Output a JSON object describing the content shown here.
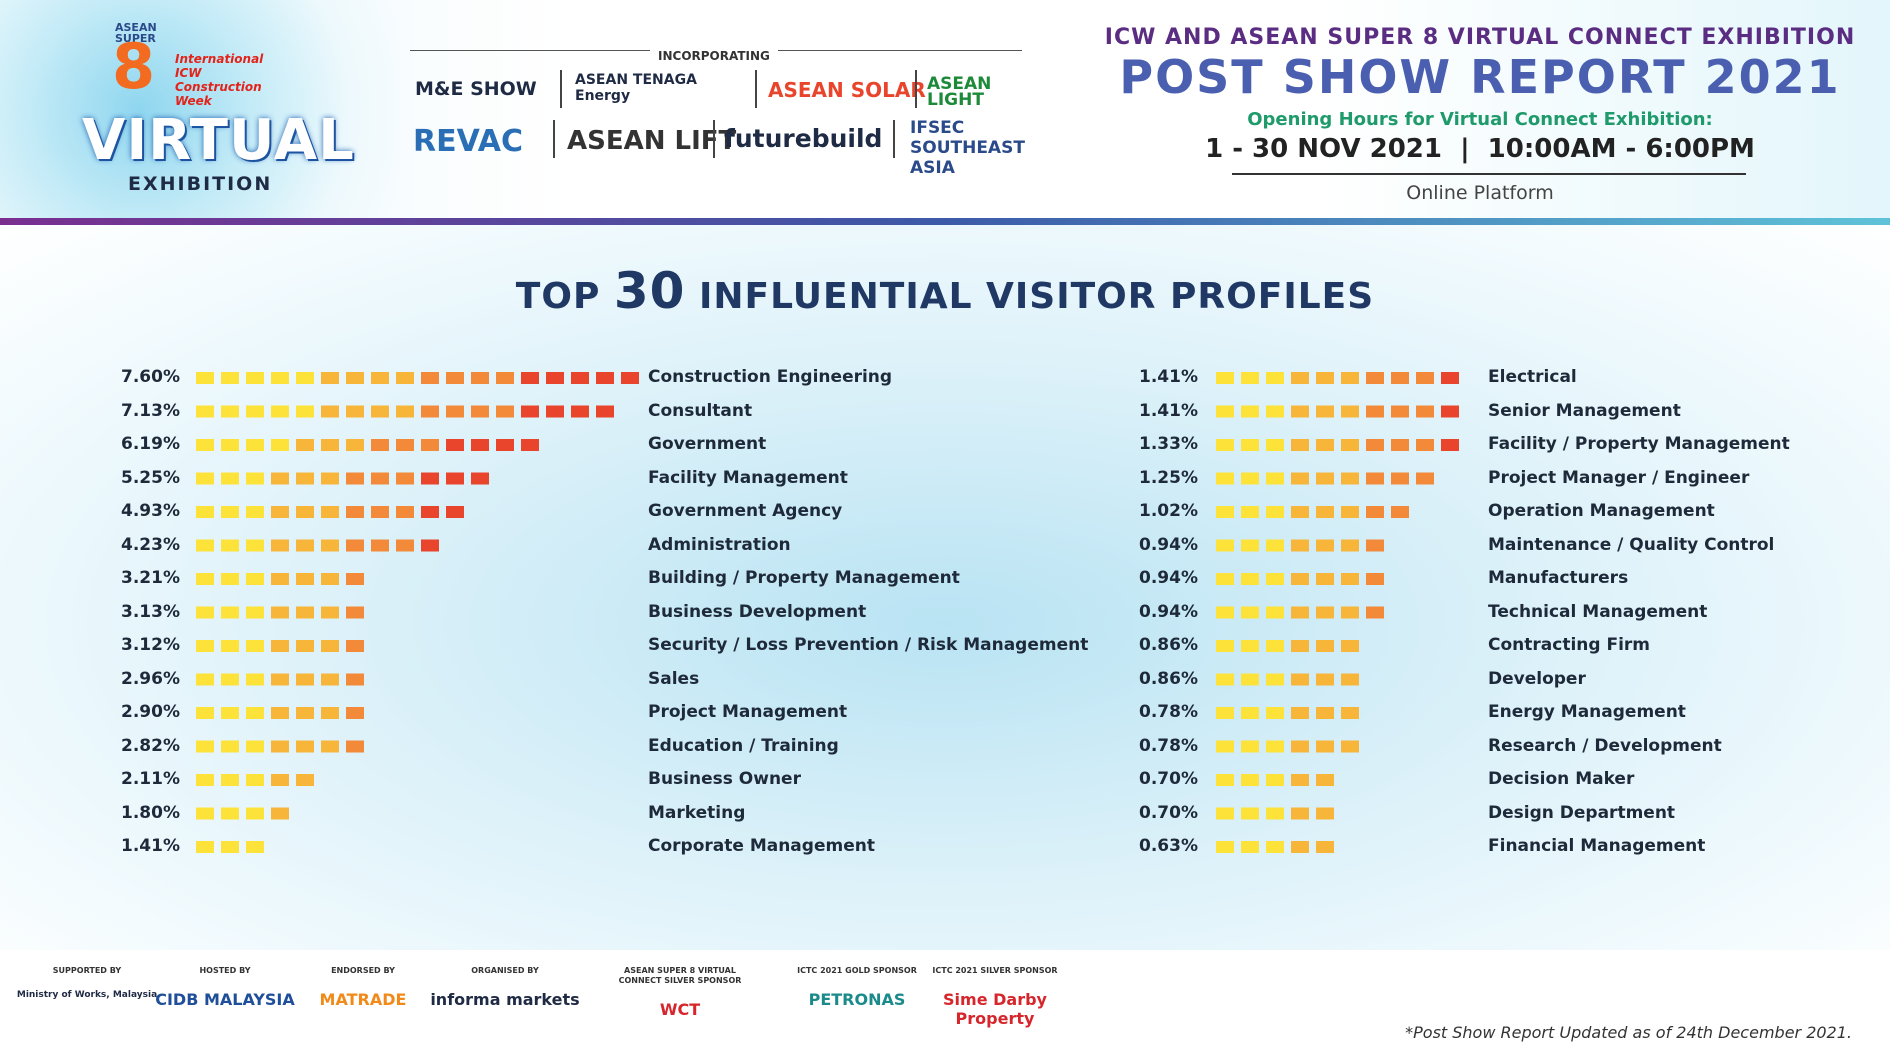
{
  "logo": {
    "asean": "ASEAN",
    "super": "SUPER",
    "eight": "8",
    "icw": "International ICW Construction Week",
    "virtual": "VIRTUAL",
    "exhibition": "EXHIBITION"
  },
  "incorporating": {
    "label": "INCORPORATING",
    "brands": [
      "M&E SHOW",
      "ASEAN TENAGA Energy",
      "ASEAN SOLAR",
      "ASEAN LIGHT",
      "REVAC",
      "ASEAN LIFT",
      "futurebuild",
      "IFSEC SOUTHEAST ASIA"
    ]
  },
  "header": {
    "top_line": "ICW AND ASEAN SUPER 8 VIRTUAL CONNECT EXHIBITION",
    "title": "POST SHOW REPORT 2021",
    "hours_label": "Opening Hours for Virtual Connect Exhibition:",
    "dates": "1 - 30 NOV 2021  |  10:00AM - 6:00PM",
    "platform": "Online Platform"
  },
  "section": {
    "title_pre": "TOP",
    "title_num": "30",
    "title_post": "INFLUENTIAL VISITOR PROFILES"
  },
  "chart_data": {
    "type": "bar",
    "title": "TOP 30 INFLUENTIAL VISITOR PROFILES",
    "orientation": "horizontal",
    "colors": [
      "#fde23a",
      "#f7b63a",
      "#f28a3a",
      "#e8452c"
    ],
    "left": [
      {
        "label": "Construction Engineering",
        "value": 7.6,
        "text": "7.60%"
      },
      {
        "label": "Consultant",
        "value": 7.13,
        "text": "7.13%"
      },
      {
        "label": "Government",
        "value": 6.19,
        "text": "6.19%"
      },
      {
        "label": "Facility Management",
        "value": 5.25,
        "text": "5.25%"
      },
      {
        "label": "Government Agency",
        "value": 4.93,
        "text": "4.93%"
      },
      {
        "label": "Administration",
        "value": 4.23,
        "text": "4.23%"
      },
      {
        "label": "Building / Property Management",
        "value": 3.21,
        "text": "3.21%"
      },
      {
        "label": "Business Development",
        "value": 3.13,
        "text": "3.13%"
      },
      {
        "label": "Security / Loss Prevention / Risk Management",
        "value": 3.12,
        "text": "3.12%"
      },
      {
        "label": "Sales",
        "value": 2.96,
        "text": "2.96%"
      },
      {
        "label": "Project Management",
        "value": 2.9,
        "text": "2.90%"
      },
      {
        "label": "Education / Training",
        "value": 2.82,
        "text": "2.82%"
      },
      {
        "label": "Business Owner",
        "value": 2.11,
        "text": "2.11%"
      },
      {
        "label": "Marketing",
        "value": 1.8,
        "text": "1.80%"
      },
      {
        "label": "Corporate Management",
        "value": 1.41,
        "text": "1.41%"
      }
    ],
    "right": [
      {
        "label": "Electrical",
        "value": 1.41,
        "text": "1.41%"
      },
      {
        "label": "Senior Management",
        "value": 1.41,
        "text": "1.41%"
      },
      {
        "label": "Facility / Property Management",
        "value": 1.33,
        "text": "1.33%"
      },
      {
        "label": "Project Manager / Engineer",
        "value": 1.25,
        "text": "1.25%"
      },
      {
        "label": "Operation Management",
        "value": 1.02,
        "text": "1.02%"
      },
      {
        "label": "Maintenance / Quality Control",
        "value": 0.94,
        "text": "0.94%"
      },
      {
        "label": "Manufacturers",
        "value": 0.94,
        "text": "0.94%"
      },
      {
        "label": "Technical Management",
        "value": 0.94,
        "text": "0.94%"
      },
      {
        "label": "Contracting Firm",
        "value": 0.86,
        "text": "0.86%"
      },
      {
        "label": "Developer",
        "value": 0.86,
        "text": "0.86%"
      },
      {
        "label": "Energy Management",
        "value": 0.78,
        "text": "0.78%"
      },
      {
        "label": "Research / Development",
        "value": 0.78,
        "text": "0.78%"
      },
      {
        "label": "Decision Maker",
        "value": 0.7,
        "text": "0.70%"
      },
      {
        "label": "Design Department",
        "value": 0.7,
        "text": "0.70%"
      },
      {
        "label": "Financial Management",
        "value": 0.63,
        "text": "0.63%"
      }
    ]
  },
  "footer": {
    "sponsors": [
      {
        "caption": "SUPPORTED BY",
        "name": "Ministry of Works, Malaysia"
      },
      {
        "caption": "HOSTED BY",
        "name": "CIDB MALAYSIA"
      },
      {
        "caption": "ENDORSED BY",
        "name": "MATRADE"
      },
      {
        "caption": "ORGANISED BY",
        "name": "informa markets"
      },
      {
        "caption": "ASEAN SUPER 8 VIRTUAL CONNECT SILVER SPONSOR",
        "name": "WCT"
      },
      {
        "caption": "ICTC 2021 GOLD SPONSOR",
        "name": "PETRONAS"
      },
      {
        "caption": "ICTC 2021 SILVER SPONSOR",
        "name": "Sime Darby Property"
      }
    ],
    "note": "*Post Show Report Updated as of 24th December 2021."
  }
}
